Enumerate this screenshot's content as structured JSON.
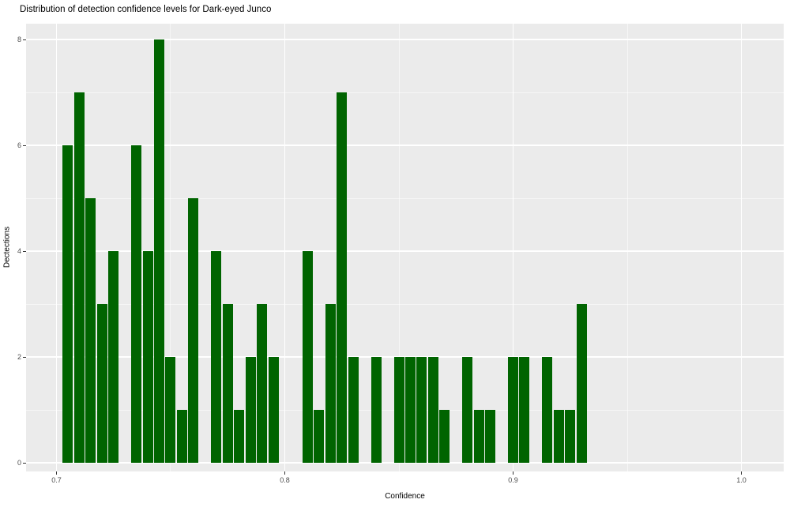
{
  "chart_data": {
    "type": "bar",
    "subtype": "histogram",
    "title": "Distribution of detection confidence levels for Dark-eyed Junco",
    "xlabel": "Confidence",
    "ylabel": "Dectections",
    "binwidth": 0.005,
    "bin_centers": [
      0.705,
      0.71,
      0.715,
      0.72,
      0.725,
      0.73,
      0.735,
      0.74,
      0.745,
      0.75,
      0.755,
      0.76,
      0.765,
      0.77,
      0.775,
      0.78,
      0.785,
      0.79,
      0.795,
      0.8,
      0.805,
      0.81,
      0.815,
      0.82,
      0.825,
      0.83,
      0.835,
      0.84,
      0.845,
      0.85,
      0.855,
      0.86,
      0.865,
      0.87,
      0.875,
      0.88,
      0.885,
      0.89,
      0.895,
      0.9,
      0.905,
      0.91,
      0.915,
      0.92,
      0.925,
      0.93
    ],
    "counts": [
      6,
      7,
      5,
      3,
      4,
      0,
      6,
      4,
      8,
      2,
      1,
      5,
      0,
      4,
      3,
      1,
      2,
      3,
      2,
      0,
      0,
      4,
      1,
      3,
      7,
      2,
      0,
      2,
      0,
      2,
      2,
      2,
      2,
      1,
      0,
      2,
      1,
      1,
      0,
      2,
      2,
      0,
      2,
      1,
      1,
      3
    ],
    "x_major_ticks": [
      0.7,
      0.8,
      0.9,
      1.0
    ],
    "x_tick_labels": [
      "0.7",
      "0.8",
      "0.9",
      "1.0"
    ],
    "x_minor_ticks": [
      0.75,
      0.85,
      0.95
    ],
    "y_major_ticks": [
      0,
      2,
      4,
      6,
      8
    ],
    "y_tick_labels": [
      "0",
      "2",
      "4",
      "6",
      "8"
    ],
    "y_minor_ticks": [
      1,
      3,
      5,
      7
    ],
    "xlim": [
      0.68668,
      1.01851
    ],
    "ylim": [
      -0.164,
      8.3
    ],
    "grid": true,
    "legend": "none",
    "colors": {
      "bar_fill": "#006400",
      "panel_bg": "#EBEBEB",
      "grid": "#FFFFFF",
      "tick_label": "#4D4D4D",
      "tick_mark": "#333333",
      "text": "#000000",
      "background": "#FFFFFF"
    }
  }
}
